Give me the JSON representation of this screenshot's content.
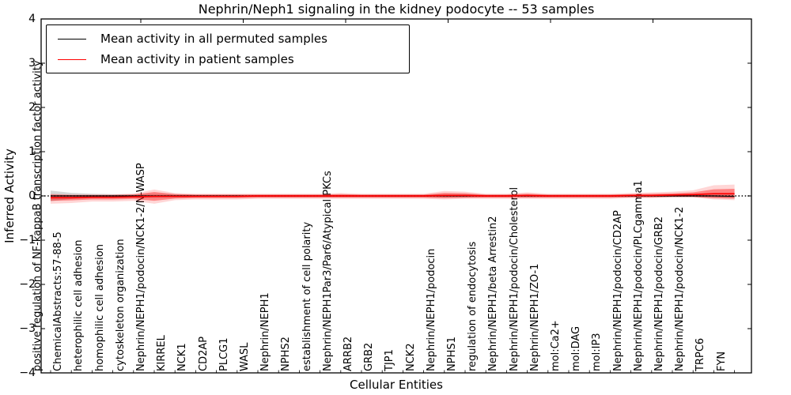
{
  "title": "Nephrin/Neph1 signaling in the kidney podocyte -- 53 samples",
  "axes": {
    "ylabel": "Inferred Activity",
    "xlabel": "Cellular Entities",
    "yticks": [
      "4",
      "3",
      "2",
      "1",
      "0",
      "−1",
      "−2",
      "−3",
      "−4"
    ],
    "ylim": [
      -4,
      4
    ]
  },
  "legend": [
    {
      "label": "Mean activity in all permuted samples",
      "color": "#000000"
    },
    {
      "label": "Mean activity in patient samples",
      "color": "#ff0000"
    }
  ],
  "colors": {
    "patient_line": "#ff0000",
    "permuted_line": "#000000",
    "patient_band": "rgba(255,0,0,0.38)",
    "patient_band_outer": "rgba(255,0,0,0.16)",
    "permuted_band": "rgba(0,0,0,0.16)",
    "zero_line": "#000000"
  },
  "chart_data": {
    "type": "line",
    "title": "Nephrin/Neph1 signaling in the kidney podocyte -- 53 samples",
    "xlabel": "Cellular Entities",
    "ylabel": "Inferred Activity",
    "ylim": [
      -4,
      4
    ],
    "grid": false,
    "legend_position": "upper left",
    "zero_line": "dotted",
    "categories": [
      "positive regulation of NF-kappaB transcription factor activity",
      "ChemicalAbstracts:57-88-5",
      "heterophilic cell adhesion",
      "homophilic cell adhesion",
      "cytoskeleton organization",
      "Nephrin/NEPH1/podocin/NCK1-2/N-WASP",
      "KIRREL",
      "NCK1",
      "CD2AP",
      "PLCG1",
      "WASL",
      "Nephrin/NEPH1",
      "NPHS2",
      "establishment of cell polarity",
      "Nephrin/NEPH1Par3/Par6/Atypical PKCs",
      "ARRB2",
      "GRB2",
      "TJP1",
      "NCK2",
      "Nephrin/NEPH1/podocin",
      "NPHS1",
      "regulation of endocytosis",
      "Nephrin/NEPH1/beta Arrestin2",
      "Nephrin/NEPH1/podocin/Cholesterol",
      "Nephrin/NEPH1/ZO-1",
      "mol:Ca2+",
      "mol:DAG",
      "mol:IP3",
      "Nephrin/NEPH1/podocin/CD2AP",
      "Nephrin/NEPH1/podocin/PLCgamma1",
      "Nephrin/NEPH1/podocin/GRB2",
      "Nephrin/NEPH1/podocin/NCK1-2",
      "TRPC6",
      "FYN"
    ],
    "series": [
      {
        "name": "Mean activity in all permuted samples",
        "color": "#000000",
        "values": [
          0,
          0,
          0,
          0,
          0,
          0,
          0,
          0,
          0,
          0,
          0,
          0,
          0,
          0,
          0,
          0,
          0,
          0,
          0,
          0,
          0,
          0,
          0,
          0,
          0,
          0,
          0,
          0,
          0,
          0,
          0,
          0,
          0,
          -0.01
        ],
        "band_upper": [
          0.12,
          0.07,
          0.05,
          0.04,
          0.04,
          0.05,
          0.04,
          0.03,
          0.03,
          0.03,
          0.03,
          0.03,
          0.03,
          0.03,
          0.03,
          0.03,
          0.03,
          0.03,
          0.03,
          0.04,
          0.04,
          0.03,
          0.03,
          0.03,
          0.03,
          0.03,
          0.03,
          0.03,
          0.03,
          0.03,
          0.03,
          0.03,
          0.04,
          0.05
        ],
        "band_lower": [
          -0.12,
          -0.07,
          -0.05,
          -0.04,
          -0.04,
          -0.05,
          -0.04,
          -0.03,
          -0.03,
          -0.03,
          -0.03,
          -0.03,
          -0.03,
          -0.03,
          -0.03,
          -0.03,
          -0.03,
          -0.03,
          -0.03,
          -0.04,
          -0.04,
          -0.03,
          -0.03,
          -0.03,
          -0.03,
          -0.03,
          -0.03,
          -0.03,
          -0.03,
          -0.03,
          -0.03,
          -0.03,
          -0.04,
          -0.05
        ]
      },
      {
        "name": "Mean activity in patient samples",
        "color": "#ff0000",
        "values": [
          -0.04,
          -0.04,
          -0.03,
          -0.03,
          -0.02,
          -0.01,
          -0.01,
          -0.01,
          -0.01,
          -0.01,
          0,
          0,
          0,
          0,
          0,
          0,
          0,
          0,
          0,
          0.01,
          0.01,
          0,
          0,
          0.01,
          0,
          0,
          0,
          0,
          0.01,
          0.01,
          0.02,
          0.03,
          0.05,
          0.05
        ],
        "band_upper": [
          0.03,
          0.02,
          0.02,
          0.02,
          0.03,
          0.09,
          0.04,
          0.03,
          0.03,
          0.03,
          0.03,
          0.03,
          0.03,
          0.03,
          0.04,
          0.03,
          0.03,
          0.03,
          0.03,
          0.07,
          0.06,
          0.03,
          0.03,
          0.05,
          0.03,
          0.03,
          0.03,
          0.03,
          0.04,
          0.05,
          0.06,
          0.08,
          0.15,
          0.16
        ],
        "band_lower": [
          -0.11,
          -0.1,
          -0.08,
          -0.08,
          -0.07,
          -0.11,
          -0.06,
          -0.05,
          -0.05,
          -0.05,
          -0.04,
          -0.04,
          -0.04,
          -0.04,
          -0.04,
          -0.04,
          -0.04,
          -0.04,
          -0.04,
          -0.05,
          -0.04,
          -0.04,
          -0.04,
          -0.04,
          -0.04,
          -0.04,
          -0.04,
          -0.04,
          -0.03,
          -0.03,
          -0.02,
          -0.02,
          -0.05,
          -0.06
        ]
      }
    ]
  }
}
